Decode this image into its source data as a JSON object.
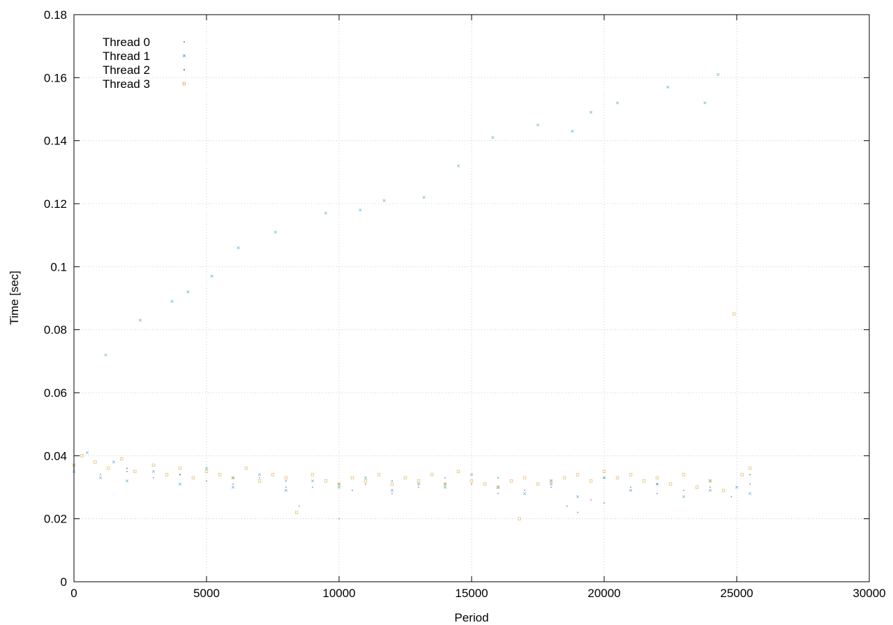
{
  "chart_data": {
    "type": "scatter",
    "title": "",
    "xlabel": "Period",
    "ylabel": "Time [sec]",
    "xlim": [
      0,
      30000
    ],
    "ylim": [
      0,
      0.18
    ],
    "x_ticks": [
      "0",
      "5000",
      "10000",
      "15000",
      "20000",
      "25000",
      "30000"
    ],
    "y_ticks": [
      "0",
      "0.02",
      "0.04",
      "0.06",
      "0.08",
      "0.1",
      "0.12",
      "0.14",
      "0.16",
      "0.18"
    ],
    "grid": true,
    "legend_position": "top-left",
    "series": [
      {
        "name": "Thread 0",
        "color": "#9a5fb0",
        "marker": "dot",
        "points": [
          [
            0,
            0.036
          ],
          [
            1000,
            0.034
          ],
          [
            2000,
            0.035
          ],
          [
            3000,
            0.033
          ],
          [
            4000,
            0.034
          ],
          [
            5000,
            0.032
          ],
          [
            6000,
            0.031
          ],
          [
            7000,
            0.033
          ],
          [
            8000,
            0.03
          ],
          [
            8500,
            0.024
          ],
          [
            9000,
            0.03
          ],
          [
            10000,
            0.02
          ],
          [
            10500,
            0.029
          ],
          [
            11000,
            0.031
          ],
          [
            12000,
            0.028
          ],
          [
            13000,
            0.03
          ],
          [
            14000,
            0.033
          ],
          [
            15000,
            0.031
          ],
          [
            16000,
            0.028
          ],
          [
            17000,
            0.029
          ],
          [
            18000,
            0.03
          ],
          [
            18600,
            0.024
          ],
          [
            19000,
            0.022
          ],
          [
            19500,
            0.026
          ],
          [
            20000,
            0.025
          ],
          [
            21000,
            0.03
          ],
          [
            22000,
            0.028
          ],
          [
            23000,
            0.029
          ],
          [
            24000,
            0.03
          ],
          [
            24800,
            0.027
          ],
          [
            25500,
            0.031
          ]
        ]
      },
      {
        "name": "Thread 1",
        "color": "#3a9ac9",
        "marker": "cross",
        "points": [
          [
            0,
            0.035
          ],
          [
            500,
            0.041
          ],
          [
            1000,
            0.033
          ],
          [
            1500,
            0.038
          ],
          [
            2000,
            0.032
          ],
          [
            3000,
            0.035
          ],
          [
            4000,
            0.031
          ],
          [
            5000,
            0.036
          ],
          [
            6000,
            0.03
          ],
          [
            7000,
            0.034
          ],
          [
            8000,
            0.029
          ],
          [
            9000,
            0.032
          ],
          [
            10000,
            0.03
          ],
          [
            11000,
            0.033
          ],
          [
            12000,
            0.029
          ],
          [
            13000,
            0.031
          ],
          [
            14000,
            0.03
          ],
          [
            15000,
            0.034
          ],
          [
            16000,
            0.03
          ],
          [
            17000,
            0.028
          ],
          [
            18000,
            0.031
          ],
          [
            19000,
            0.027
          ],
          [
            20000,
            0.033
          ],
          [
            21000,
            0.029
          ],
          [
            22000,
            0.031
          ],
          [
            23000,
            0.027
          ],
          [
            24000,
            0.029
          ],
          [
            25000,
            0.03
          ],
          [
            25500,
            0.028
          ],
          [
            1200,
            0.072
          ],
          [
            2500,
            0.083
          ],
          [
            3700,
            0.089
          ],
          [
            4300,
            0.092
          ],
          [
            5200,
            0.097
          ],
          [
            6200,
            0.106
          ],
          [
            7600,
            0.111
          ],
          [
            9500,
            0.117
          ],
          [
            10800,
            0.118
          ],
          [
            11700,
            0.121
          ],
          [
            13200,
            0.122
          ],
          [
            14500,
            0.132
          ],
          [
            15800,
            0.141
          ],
          [
            17500,
            0.145
          ],
          [
            18800,
            0.143
          ],
          [
            19500,
            0.149
          ],
          [
            20500,
            0.152
          ],
          [
            22400,
            0.157
          ],
          [
            23800,
            0.152
          ],
          [
            24300,
            0.161
          ]
        ]
      },
      {
        "name": "Thread 2",
        "color": "#1f7a6e",
        "marker": "dot",
        "points": [
          [
            0,
            0.037
          ],
          [
            2000,
            0.036
          ],
          [
            4000,
            0.034
          ],
          [
            6000,
            0.033
          ],
          [
            8000,
            0.032
          ],
          [
            10000,
            0.031
          ],
          [
            12000,
            0.032
          ],
          [
            14000,
            0.031
          ],
          [
            16000,
            0.033
          ],
          [
            18000,
            0.032
          ],
          [
            20000,
            0.033
          ],
          [
            22000,
            0.031
          ],
          [
            24000,
            0.032
          ],
          [
            25500,
            0.034
          ]
        ]
      },
      {
        "name": "Thread 3",
        "color": "#d9a73b",
        "marker": "square",
        "points": [
          [
            0,
            0.037
          ],
          [
            300,
            0.04
          ],
          [
            800,
            0.038
          ],
          [
            1300,
            0.036
          ],
          [
            1800,
            0.039
          ],
          [
            2300,
            0.035
          ],
          [
            3000,
            0.037
          ],
          [
            3500,
            0.034
          ],
          [
            4000,
            0.036
          ],
          [
            4500,
            0.033
          ],
          [
            5000,
            0.035
          ],
          [
            5500,
            0.034
          ],
          [
            6000,
            0.033
          ],
          [
            6500,
            0.036
          ],
          [
            7000,
            0.032
          ],
          [
            7500,
            0.034
          ],
          [
            8000,
            0.033
          ],
          [
            8400,
            0.022
          ],
          [
            9000,
            0.034
          ],
          [
            9500,
            0.032
          ],
          [
            10000,
            0.031
          ],
          [
            10500,
            0.033
          ],
          [
            11000,
            0.032
          ],
          [
            11500,
            0.034
          ],
          [
            12000,
            0.031
          ],
          [
            12500,
            0.033
          ],
          [
            13000,
            0.032
          ],
          [
            13500,
            0.034
          ],
          [
            14000,
            0.031
          ],
          [
            14500,
            0.035
          ],
          [
            15000,
            0.032
          ],
          [
            15500,
            0.031
          ],
          [
            16000,
            0.03
          ],
          [
            16500,
            0.032
          ],
          [
            16800,
            0.02
          ],
          [
            17000,
            0.033
          ],
          [
            17500,
            0.031
          ],
          [
            18000,
            0.032
          ],
          [
            18500,
            0.033
          ],
          [
            19000,
            0.034
          ],
          [
            19500,
            0.032
          ],
          [
            20000,
            0.035
          ],
          [
            20500,
            0.033
          ],
          [
            21000,
            0.034
          ],
          [
            21500,
            0.032
          ],
          [
            22000,
            0.033
          ],
          [
            22500,
            0.031
          ],
          [
            23000,
            0.034
          ],
          [
            23500,
            0.03
          ],
          [
            24000,
            0.032
          ],
          [
            24500,
            0.029
          ],
          [
            24900,
            0.085
          ],
          [
            25200,
            0.034
          ],
          [
            25500,
            0.036
          ]
        ]
      }
    ]
  }
}
